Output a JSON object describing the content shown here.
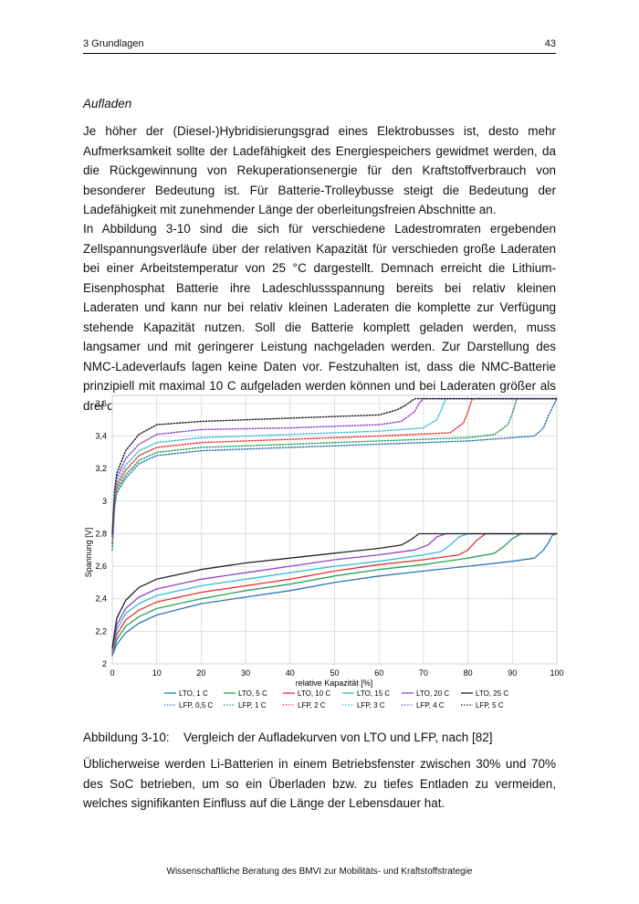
{
  "header": {
    "chapter": "3 Grundlagen",
    "page_number": "43"
  },
  "section_heading": "Aufladen",
  "paragraphs": [
    "Je höher der (Diesel-)Hybridisierungsgrad eines Elektrobusses ist, desto mehr Aufmerk­samkeit sollte der Ladefähigkeit des Energiespeichers gewidmet werden, da die Rückge­winnung von Rekuperationsenergie für den Kraftstoffverbrauch von besonderer Bedeutung ist. Für Batterie-Trolleybusse steigt die Bedeutung der Ladefähigkeit mit zunehmender Länge der oberleitungsfreien Abschnitte an.",
    "In Abbildung 3-10 sind die sich für verschiedene Ladestromraten ergebenden Zellspan­nungsverläufe über der relativen Kapazität für verschieden große Laderaten bei einer Ar­beitstemperatur von 25 °C dargestellt. Demnach erreicht die Lithium-Eisenphosphat Batte­rie ihre Ladeschlussspannung bereits bei relativ kleinen Laderaten und kann nur bei relativ kleinen Laderaten die komplette zur Verfügung stehende Kapazität nutzen. Soll die Batterie komplett geladen werden, muss langsamer und mit geringerer Leistung nachgeladen wer­den. Zur Darstellung des NMC-Ladeverlaufs lagen keine Daten vor. Festzuhalten ist, dass die NMC-Batterie prinzipiell mit maximal 10 C aufgeladen werden können und bei Ladera­ten größer als drei die Ladeschlussspannung umgehend erreicht wird.",
    "Üblicherweise werden Li-Batterien in einem Betriebsfenster zwischen 30% und 70% des SoC betrieben, um so ein Überladen bzw. zu tiefes Entladen zu vermeiden, welches signi­fikanten Einfluss auf die Länge der Lebensdauer hat."
  ],
  "figure": {
    "number": "Abbildung 3-10:",
    "caption": "Vergleich der Aufladekurven von LTO und LFP, nach [82]"
  },
  "footer": "Wissenschaftliche Beratung des BMVI zur Mobilitäts- und Kraftstoffstrategie",
  "chart_data": {
    "type": "line",
    "xlabel": "relative Kapazität [%]",
    "ylabel": "Spannung [V]",
    "xlim": [
      0,
      100
    ],
    "ylim": [
      2,
      3.65
    ],
    "xticks": [
      0,
      10,
      20,
      30,
      40,
      50,
      60,
      70,
      80,
      90,
      100
    ],
    "xtick_labels": [
      "0",
      "10",
      "20",
      "30",
      "40",
      "50",
      "60",
      "70",
      "80",
      "90",
      "100"
    ],
    "yticks": [
      2,
      2.2,
      2.4,
      2.6,
      2.8,
      3,
      3.2,
      3.4,
      3.6
    ],
    "ytick_labels": [
      "2",
      "2,2",
      "2,4",
      "2,6",
      "2,8",
      "3",
      "3,2",
      "3,4",
      "3,6"
    ],
    "grid": true,
    "legend_position": "bottom",
    "series": [
      {
        "name": "LTO, 1 C",
        "color": "#2e75b6",
        "dash": "solid",
        "points": [
          [
            0,
            2.05
          ],
          [
            1,
            2.12
          ],
          [
            3,
            2.19
          ],
          [
            6,
            2.25
          ],
          [
            10,
            2.3
          ],
          [
            20,
            2.37
          ],
          [
            30,
            2.41
          ],
          [
            40,
            2.45
          ],
          [
            50,
            2.5
          ],
          [
            60,
            2.54
          ],
          [
            70,
            2.57
          ],
          [
            80,
            2.6
          ],
          [
            90,
            2.63
          ],
          [
            95,
            2.65
          ],
          [
            97,
            2.7
          ],
          [
            98,
            2.74
          ],
          [
            99,
            2.79
          ],
          [
            100,
            2.8
          ]
        ]
      },
      {
        "name": "LTO, 5 C",
        "color": "#2ca05a",
        "dash": "solid",
        "points": [
          [
            0,
            2.06
          ],
          [
            1,
            2.15
          ],
          [
            3,
            2.23
          ],
          [
            6,
            2.29
          ],
          [
            10,
            2.34
          ],
          [
            20,
            2.4
          ],
          [
            30,
            2.45
          ],
          [
            40,
            2.49
          ],
          [
            50,
            2.54
          ],
          [
            60,
            2.58
          ],
          [
            70,
            2.61
          ],
          [
            80,
            2.65
          ],
          [
            86,
            2.68
          ],
          [
            88,
            2.72
          ],
          [
            90,
            2.77
          ],
          [
            92,
            2.8
          ],
          [
            100,
            2.8
          ]
        ]
      },
      {
        "name": "LTO, 10 C",
        "color": "#e8302d",
        "dash": "solid",
        "points": [
          [
            0,
            2.07
          ],
          [
            1,
            2.18
          ],
          [
            3,
            2.27
          ],
          [
            6,
            2.33
          ],
          [
            10,
            2.38
          ],
          [
            20,
            2.44
          ],
          [
            30,
            2.48
          ],
          [
            40,
            2.52
          ],
          [
            50,
            2.57
          ],
          [
            60,
            2.61
          ],
          [
            70,
            2.64
          ],
          [
            78,
            2.67
          ],
          [
            80,
            2.7
          ],
          [
            82,
            2.76
          ],
          [
            84,
            2.8
          ],
          [
            100,
            2.8
          ]
        ]
      },
      {
        "name": "LTO, 15 C",
        "color": "#33bcd6",
        "dash": "solid",
        "points": [
          [
            0,
            2.08
          ],
          [
            1,
            2.21
          ],
          [
            3,
            2.31
          ],
          [
            6,
            2.37
          ],
          [
            10,
            2.42
          ],
          [
            20,
            2.48
          ],
          [
            30,
            2.52
          ],
          [
            40,
            2.56
          ],
          [
            50,
            2.6
          ],
          [
            60,
            2.63
          ],
          [
            70,
            2.67
          ],
          [
            74,
            2.69
          ],
          [
            76,
            2.73
          ],
          [
            78,
            2.78
          ],
          [
            80,
            2.8
          ],
          [
            100,
            2.8
          ]
        ]
      },
      {
        "name": "LTO, 20 C",
        "color": "#8e44c6",
        "dash": "solid",
        "points": [
          [
            0,
            2.09
          ],
          [
            1,
            2.24
          ],
          [
            3,
            2.34
          ],
          [
            6,
            2.41
          ],
          [
            10,
            2.46
          ],
          [
            20,
            2.52
          ],
          [
            30,
            2.56
          ],
          [
            40,
            2.6
          ],
          [
            50,
            2.64
          ],
          [
            60,
            2.67
          ],
          [
            68,
            2.7
          ],
          [
            71,
            2.73
          ],
          [
            73,
            2.78
          ],
          [
            75,
            2.8
          ],
          [
            100,
            2.8
          ]
        ]
      },
      {
        "name": "LTO, 25 C",
        "color": "#222222",
        "dash": "solid",
        "points": [
          [
            0,
            2.1
          ],
          [
            1,
            2.28
          ],
          [
            3,
            2.39
          ],
          [
            6,
            2.47
          ],
          [
            10,
            2.52
          ],
          [
            20,
            2.58
          ],
          [
            30,
            2.62
          ],
          [
            40,
            2.65
          ],
          [
            50,
            2.68
          ],
          [
            60,
            2.71
          ],
          [
            65,
            2.73
          ],
          [
            67,
            2.76
          ],
          [
            69,
            2.8
          ],
          [
            100,
            2.8
          ]
        ]
      },
      {
        "name": "LFP, 0,5 C",
        "color": "#2e75b6",
        "dash": "dotted",
        "points": [
          [
            0,
            2.7
          ],
          [
            0.5,
            2.95
          ],
          [
            1,
            3.05
          ],
          [
            3,
            3.14
          ],
          [
            6,
            3.23
          ],
          [
            10,
            3.28
          ],
          [
            20,
            3.31
          ],
          [
            40,
            3.33
          ],
          [
            60,
            3.35
          ],
          [
            80,
            3.37
          ],
          [
            95,
            3.4
          ],
          [
            97,
            3.45
          ],
          [
            98,
            3.52
          ],
          [
            100,
            3.63
          ]
        ]
      },
      {
        "name": "LFP, 1 C",
        "color": "#2ca05a",
        "dash": "dotted",
        "points": [
          [
            0,
            2.72
          ],
          [
            0.5,
            2.97
          ],
          [
            1,
            3.07
          ],
          [
            3,
            3.16
          ],
          [
            6,
            3.25
          ],
          [
            10,
            3.3
          ],
          [
            20,
            3.33
          ],
          [
            40,
            3.35
          ],
          [
            60,
            3.37
          ],
          [
            80,
            3.39
          ],
          [
            86,
            3.41
          ],
          [
            89,
            3.47
          ],
          [
            90,
            3.54
          ],
          [
            91,
            3.63
          ],
          [
            100,
            3.63
          ]
        ]
      },
      {
        "name": "LFP, 2 C",
        "color": "#e8302d",
        "dash": "dotted",
        "points": [
          [
            0,
            2.74
          ],
          [
            0.5,
            2.99
          ],
          [
            1,
            3.09
          ],
          [
            3,
            3.19
          ],
          [
            6,
            3.28
          ],
          [
            10,
            3.33
          ],
          [
            20,
            3.36
          ],
          [
            40,
            3.38
          ],
          [
            60,
            3.4
          ],
          [
            76,
            3.42
          ],
          [
            79,
            3.48
          ],
          [
            80,
            3.55
          ],
          [
            81,
            3.63
          ],
          [
            100,
            3.63
          ]
        ]
      },
      {
        "name": "LFP, 3 C",
        "color": "#33bcd6",
        "dash": "dotted",
        "points": [
          [
            0,
            2.76
          ],
          [
            0.5,
            3.01
          ],
          [
            1,
            3.11
          ],
          [
            3,
            3.22
          ],
          [
            6,
            3.31
          ],
          [
            10,
            3.36
          ],
          [
            20,
            3.39
          ],
          [
            40,
            3.41
          ],
          [
            60,
            3.43
          ],
          [
            70,
            3.45
          ],
          [
            73,
            3.5
          ],
          [
            74,
            3.56
          ],
          [
            75,
            3.63
          ],
          [
            100,
            3.63
          ]
        ]
      },
      {
        "name": "LFP, 4 C",
        "color": "#8e44c6",
        "dash": "dotted",
        "points": [
          [
            0,
            2.78
          ],
          [
            0.5,
            3.03
          ],
          [
            1,
            3.14
          ],
          [
            3,
            3.26
          ],
          [
            6,
            3.35
          ],
          [
            10,
            3.41
          ],
          [
            20,
            3.44
          ],
          [
            40,
            3.45
          ],
          [
            60,
            3.47
          ],
          [
            65,
            3.49
          ],
          [
            68,
            3.55
          ],
          [
            69,
            3.6
          ],
          [
            70,
            3.63
          ],
          [
            100,
            3.63
          ]
        ]
      },
      {
        "name": "LFP, 5 C",
        "color": "#222222",
        "dash": "dotted",
        "points": [
          [
            0,
            2.8
          ],
          [
            0.5,
            3.06
          ],
          [
            1,
            3.17
          ],
          [
            3,
            3.31
          ],
          [
            6,
            3.41
          ],
          [
            10,
            3.47
          ],
          [
            20,
            3.49
          ],
          [
            40,
            3.51
          ],
          [
            60,
            3.53
          ],
          [
            64,
            3.56
          ],
          [
            66,
            3.59
          ],
          [
            68,
            3.63
          ],
          [
            100,
            3.63
          ]
        ]
      }
    ]
  }
}
